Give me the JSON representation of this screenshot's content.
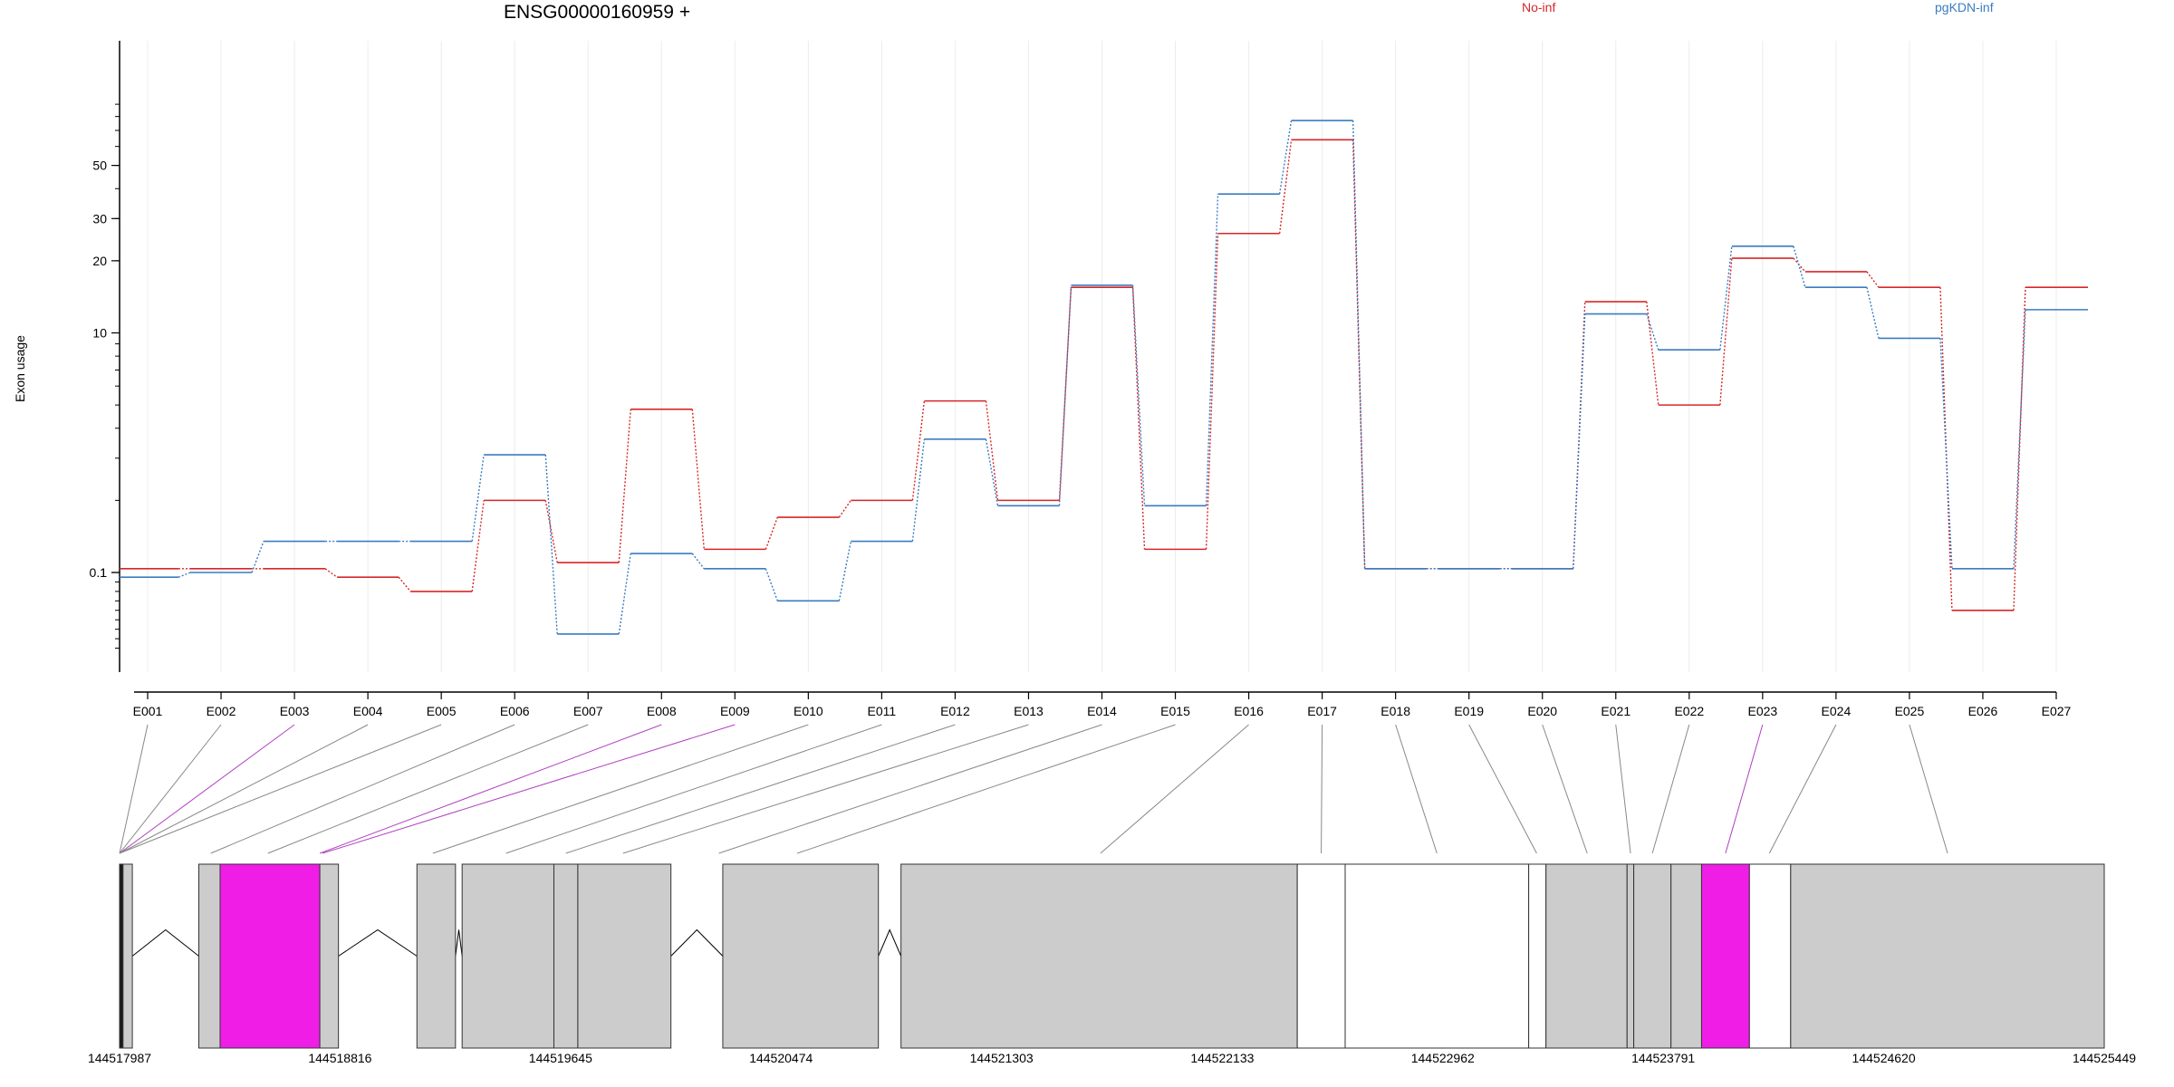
{
  "chart_data": {
    "type": "line",
    "title": "ENSG00000160959 +",
    "xlabel": "",
    "ylabel": "Exon usage",
    "y_scale": "log",
    "grid": true,
    "legend_placement": "top",
    "categories": [
      "E001",
      "E002",
      "E003",
      "E004",
      "E005",
      "E006",
      "E007",
      "E008",
      "E009",
      "E010",
      "E011",
      "E012",
      "E013",
      "E014",
      "E015",
      "E016",
      "E017",
      "E018",
      "E019",
      "E020",
      "E021",
      "E022",
      "E023",
      "E024",
      "E025",
      "E026",
      "E027"
    ],
    "y_ticks": [
      0.1,
      1,
      10,
      20,
      30,
      50
    ],
    "y_tick_labels": [
      "0.1",
      "1",
      "10",
      "20",
      "30",
      "50"
    ],
    "series": [
      {
        "name": "No-inf",
        "color": "#d62728",
        "values": [
          0.06,
          0.06,
          0.06,
          0.15,
          0.3,
          2.0,
          1.1,
          4.8,
          1.25,
          1.7,
          2.0,
          5.2,
          2.0,
          15.5,
          1.25,
          26,
          64,
          0.06,
          0.06,
          0.06,
          13.5,
          5.0,
          20.5,
          18,
          15.5,
          0.5,
          15.5
        ]
      },
      {
        "name": "pgKDN-inf",
        "color": "#3a7cc0",
        "values": [
          0.15,
          1.0,
          1.35,
          1.35,
          1.35,
          3.1,
          0.75,
          1.2,
          0.06,
          0.4,
          1.35,
          3.6,
          1.9,
          15.8,
          1.9,
          38,
          77,
          0.06,
          0.06,
          0.06,
          12.0,
          8.5,
          23,
          15.5,
          9.5,
          0.06,
          12.5
        ]
      }
    ],
    "genomic_axis": {
      "start": 144517987,
      "end": 144525449,
      "tick_labels": [
        "144517987",
        "144518816",
        "144519645",
        "144520474",
        "144521303",
        "144522133",
        "144522962",
        "144523791",
        "144524620",
        "144525449"
      ],
      "tick_values": [
        144517987,
        144518816,
        144519645,
        144520474,
        144521303,
        144522133,
        144522962,
        144523791,
        144524620,
        144525449
      ]
    },
    "gene_model": {
      "exons": [
        {
          "id": "E001",
          "start": 144517987,
          "end": 144518000,
          "color": "#1a1a1a"
        },
        {
          "id": "E002",
          "start": 144518000,
          "end": 144518035,
          "color": "#cccccc"
        },
        {
          "id": "E003",
          "start": 144518285,
          "end": 144518365,
          "color": "#cccccc"
        },
        {
          "id": "E004",
          "start": 144518365,
          "end": 144518740,
          "color": "#f01de6"
        },
        {
          "id": "E005",
          "start": 144518740,
          "end": 144518810,
          "color": "#cccccc"
        },
        {
          "id": "E006",
          "start": 144519105,
          "end": 144519250,
          "color": "#cccccc"
        },
        {
          "id": "E007",
          "start": 144519275,
          "end": 144519620,
          "color": "#cccccc"
        },
        {
          "id": "E008",
          "start": 144519620,
          "end": 144519710,
          "color": "#cccccc"
        },
        {
          "id": "E009",
          "start": 144519710,
          "end": 144520060,
          "color": "#cccccc"
        },
        {
          "id": "E010",
          "start": 144520255,
          "end": 144520840,
          "color": "#cccccc"
        },
        {
          "id": "E011",
          "start": 144520925,
          "end": 144522415,
          "color": "#cccccc"
        },
        {
          "id": "E012",
          "start": 144522415,
          "end": 144522595,
          "color": "#ffffff"
        },
        {
          "id": "E013",
          "start": 144522595,
          "end": 144523285,
          "color": "#ffffff"
        },
        {
          "id": "E014",
          "start": 144523285,
          "end": 144523350,
          "color": "#ffffff"
        },
        {
          "id": "E015",
          "start": 144523350,
          "end": 144523655,
          "color": "#cccccc"
        },
        {
          "id": "E016",
          "start": 144523655,
          "end": 144523680,
          "color": "#cccccc"
        },
        {
          "id": "E017",
          "start": 144523680,
          "end": 144523820,
          "color": "#cccccc"
        },
        {
          "id": "E018",
          "start": 144523820,
          "end": 144523935,
          "color": "#cccccc"
        },
        {
          "id": "E019",
          "start": 144523935,
          "end": 144524115,
          "color": "#f01de6"
        },
        {
          "id": "E020",
          "start": 144524115,
          "end": 144524270,
          "color": "#ffffff"
        },
        {
          "id": "E021",
          "start": 144524270,
          "end": 144525449,
          "color": "#cccccc"
        }
      ],
      "introns": [
        {
          "start": 144518035,
          "end": 144518285
        },
        {
          "start": 144518810,
          "end": 144519105
        },
        {
          "start": 144519250,
          "end": 144519275
        },
        {
          "start": 144520060,
          "end": 144520255
        },
        {
          "start": 144520840,
          "end": 144520925
        }
      ],
      "connectors": [
        {
          "category": "E001",
          "genomic": 144517987,
          "color": "#888888"
        },
        {
          "category": "E002",
          "genomic": 144517987,
          "color": "#888888"
        },
        {
          "category": "E003",
          "genomic": 144517987,
          "color": "#b040c0"
        },
        {
          "category": "E004",
          "genomic": 144517987,
          "color": "#888888"
        },
        {
          "category": "E005",
          "genomic": 144517987,
          "color": "#888888"
        },
        {
          "category": "E006",
          "genomic": 144518330,
          "color": "#888888"
        },
        {
          "category": "E007",
          "genomic": 144518545,
          "color": "#888888"
        },
        {
          "category": "E008",
          "genomic": 144518740,
          "color": "#b040c0"
        },
        {
          "category": "E009",
          "genomic": 144518750,
          "color": "#b040c0"
        },
        {
          "category": "E010",
          "genomic": 144519165,
          "color": "#888888"
        },
        {
          "category": "E011",
          "genomic": 144519440,
          "color": "#888888"
        },
        {
          "category": "E012",
          "genomic": 144519665,
          "color": "#888888"
        },
        {
          "category": "E013",
          "genomic": 144519880,
          "color": "#888888"
        },
        {
          "category": "E014",
          "genomic": 144520240,
          "color": "#888888"
        },
        {
          "category": "E015",
          "genomic": 144520535,
          "color": "#888888"
        },
        {
          "category": "E016",
          "genomic": 144521675,
          "color": "#888888"
        },
        {
          "category": "E017",
          "genomic": 144522505,
          "color": "#888888"
        },
        {
          "category": "E018",
          "genomic": 144522940,
          "color": "#888888"
        },
        {
          "category": "E019",
          "genomic": 144523315,
          "color": "#888888"
        },
        {
          "category": "E020",
          "genomic": 144523505,
          "color": "#888888"
        },
        {
          "category": "E021",
          "genomic": 144523668,
          "color": "#888888"
        },
        {
          "category": "E022",
          "genomic": 144523750,
          "color": "#888888"
        },
        {
          "category": "E023",
          "genomic": 144524025,
          "color": "#b040c0"
        },
        {
          "category": "E024",
          "genomic": 144524190,
          "color": "#888888"
        },
        {
          "category": "E025",
          "genomic": 144524860,
          "color": "#888888"
        }
      ]
    }
  }
}
